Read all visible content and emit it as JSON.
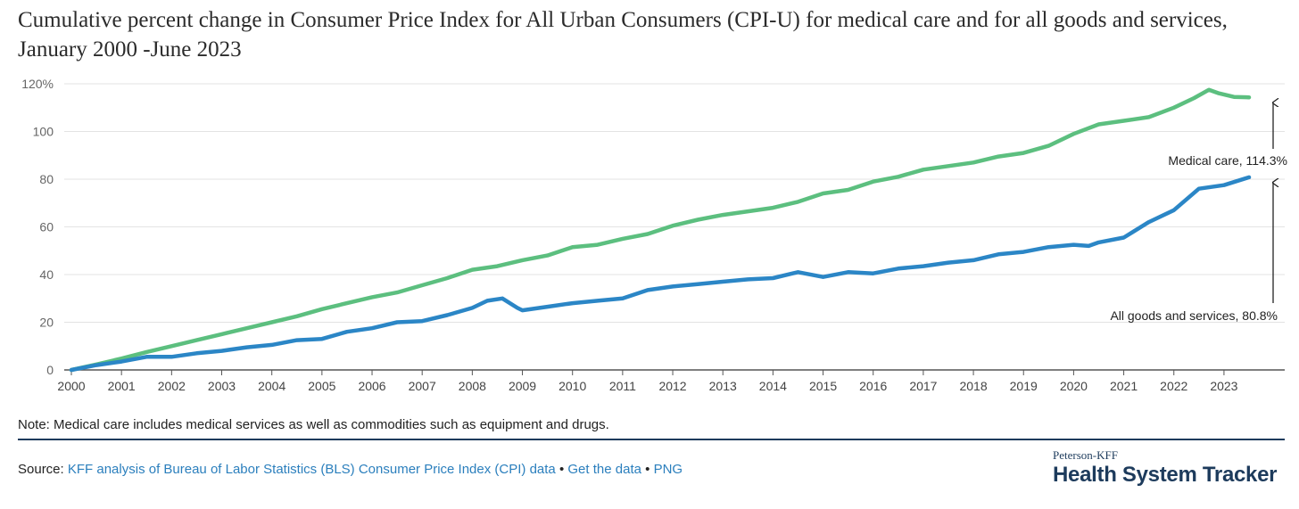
{
  "page": {
    "note": "Note: Medical care includes medical services as well as commodities such as equipment and drugs.",
    "source_prefix": "Source:",
    "source_link1": "KFF analysis of Bureau of Labor Statistics (BLS) Consumer Price Index (CPI) data",
    "source_sep1": "•",
    "source_link2": "Get the data",
    "source_sep2": "•",
    "source_link3": "PNG",
    "brand_top": "Peterson-KFF",
    "brand_main": "Health System Tracker"
  },
  "chart_data": {
    "type": "line",
    "title": "Cumulative percent change in Consumer Price Index for All Urban Consumers (CPI-U) for medical care and for all goods and services, January 2000 -June 2023",
    "xlabel": "",
    "ylabel": "",
    "xlim": [
      2000,
      2023.5
    ],
    "ylim": [
      0,
      120
    ],
    "y_ticks": [
      0,
      20,
      40,
      60,
      80,
      100,
      120
    ],
    "y_tick_labels": [
      "0",
      "20",
      "40",
      "60",
      "80",
      "100",
      "120%"
    ],
    "x_ticks": [
      2000,
      2001,
      2002,
      2003,
      2004,
      2005,
      2006,
      2007,
      2008,
      2009,
      2010,
      2011,
      2012,
      2013,
      2014,
      2015,
      2016,
      2017,
      2018,
      2019,
      2020,
      2021,
      2022,
      2023
    ],
    "x_tick_labels": [
      "2000",
      "2001",
      "2002",
      "2003",
      "2004",
      "2005",
      "2006",
      "2007",
      "2008",
      "2009",
      "2010",
      "2011",
      "2012",
      "2013",
      "2014",
      "2015",
      "2016",
      "2017",
      "2018",
      "2019",
      "2020",
      "2021",
      "2022",
      "2023"
    ],
    "grid": true,
    "legend": "direct labels",
    "colors": {
      "medical": "#5cbf7f",
      "all": "#2b86c6",
      "grid": "#e3e3e3",
      "axis": "#555555"
    },
    "series": [
      {
        "name": "Medical care",
        "end_label": "Medical care, 114.3%",
        "x": [
          2000,
          2000.5,
          2001,
          2001.5,
          2002,
          2002.5,
          2003,
          2003.5,
          2004,
          2004.5,
          2005,
          2005.5,
          2006,
          2006.5,
          2007,
          2007.5,
          2008,
          2008.5,
          2009,
          2009.5,
          2010,
          2010.5,
          2011,
          2011.5,
          2012,
          2012.5,
          2013,
          2013.5,
          2014,
          2014.5,
          2015,
          2015.5,
          2016,
          2016.5,
          2017,
          2017.5,
          2018,
          2018.5,
          2019,
          2019.5,
          2020,
          2020.5,
          2021,
          2021.5,
          2022,
          2022.4,
          2022.7,
          2022.9,
          2023.2,
          2023.5
        ],
        "values": [
          0,
          2.3,
          4.8,
          7.5,
          10,
          12.5,
          15,
          17.5,
          20,
          22.5,
          25.5,
          28,
          30.5,
          32.5,
          35.5,
          38.5,
          42,
          43.5,
          46,
          48,
          51.5,
          52.5,
          55,
          57,
          60.5,
          63,
          65,
          66.5,
          68,
          70.5,
          74,
          75.5,
          79,
          81,
          84,
          85.5,
          87,
          89.5,
          91,
          94,
          99,
          103,
          104.5,
          106,
          110,
          114,
          117.5,
          116,
          114.5,
          114.3
        ]
      },
      {
        "name": "All goods and services",
        "end_label": "All goods and services, 80.8%",
        "x": [
          2000,
          2000.5,
          2001,
          2001.5,
          2002,
          2002.5,
          2003,
          2003.5,
          2004,
          2004.5,
          2005,
          2005.5,
          2006,
          2006.5,
          2007,
          2007.5,
          2008,
          2008.3,
          2008.6,
          2008.9,
          2009,
          2009.5,
          2010,
          2010.5,
          2011,
          2011.5,
          2012,
          2012.5,
          2013,
          2013.5,
          2014,
          2014.5,
          2015,
          2015.5,
          2016,
          2016.5,
          2017,
          2017.5,
          2018,
          2018.5,
          2019,
          2019.5,
          2020,
          2020.3,
          2020.5,
          2021,
          2021.5,
          2022,
          2022.5,
          2023,
          2023.5
        ],
        "values": [
          0,
          2,
          3.5,
          5.5,
          5.5,
          7,
          8,
          9.5,
          10.5,
          12.5,
          13,
          16,
          17.5,
          20,
          20.5,
          23,
          26,
          29,
          30,
          26,
          25,
          26.5,
          28,
          29,
          30,
          33.5,
          35,
          36,
          37,
          38,
          38.5,
          41,
          39,
          41,
          40.5,
          42.5,
          43.5,
          45,
          46,
          48.5,
          49.5,
          51.5,
          52.5,
          52,
          53.5,
          55.5,
          62,
          67,
          76,
          77.5,
          80.8
        ]
      }
    ]
  }
}
